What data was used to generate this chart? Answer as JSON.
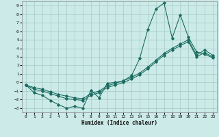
{
  "xlabel": "Humidex (Indice chaleur)",
  "bg_color": "#cceae7",
  "grid_color": "#aacfcc",
  "line_color": "#1a6b60",
  "xlim": [
    -0.5,
    23.5
  ],
  "ylim": [
    -3.5,
    9.5
  ],
  "xticks": [
    0,
    1,
    2,
    3,
    4,
    5,
    6,
    7,
    8,
    9,
    10,
    11,
    12,
    13,
    14,
    15,
    16,
    17,
    18,
    19,
    20,
    21,
    22,
    23
  ],
  "yticks": [
    -3,
    -2,
    -1,
    0,
    1,
    2,
    3,
    4,
    5,
    6,
    7,
    8,
    9
  ],
  "line1_x": [
    0,
    1,
    2,
    3,
    4,
    5,
    6,
    7,
    8,
    9,
    10,
    11,
    12,
    13,
    14,
    15,
    16,
    17,
    18,
    19,
    20,
    21,
    22,
    23
  ],
  "line1_y": [
    -0.3,
    -1.2,
    -1.5,
    -2.1,
    -2.6,
    -3.0,
    -2.8,
    -3.0,
    -0.9,
    -1.8,
    -0.1,
    0.0,
    0.2,
    0.8,
    2.8,
    6.2,
    8.6,
    9.3,
    5.2,
    7.9,
    5.3,
    3.6,
    3.3,
    2.9
  ],
  "line2_x": [
    0,
    1,
    2,
    3,
    4,
    5,
    6,
    7,
    8,
    9,
    10,
    11,
    12,
    13,
    14,
    15,
    16,
    17,
    18,
    19,
    20,
    21,
    22,
    23
  ],
  "line2_y": [
    -0.3,
    -0.8,
    -1.0,
    -1.3,
    -1.6,
    -1.9,
    -2.0,
    -2.1,
    -1.5,
    -1.2,
    -0.6,
    -0.3,
    0.0,
    0.4,
    0.9,
    1.6,
    2.4,
    3.2,
    3.8,
    4.3,
    4.8,
    3.0,
    3.5,
    3.0
  ],
  "line3_x": [
    0,
    1,
    2,
    3,
    4,
    5,
    6,
    7,
    8,
    9,
    10,
    11,
    12,
    13,
    14,
    15,
    16,
    17,
    18,
    19,
    20,
    21,
    22,
    23
  ],
  "line3_y": [
    -0.3,
    -0.6,
    -0.8,
    -1.1,
    -1.4,
    -1.6,
    -1.8,
    -1.9,
    -1.3,
    -1.0,
    -0.4,
    -0.1,
    0.2,
    0.6,
    1.1,
    1.8,
    2.6,
    3.4,
    4.0,
    4.5,
    5.0,
    3.2,
    3.8,
    3.2
  ]
}
